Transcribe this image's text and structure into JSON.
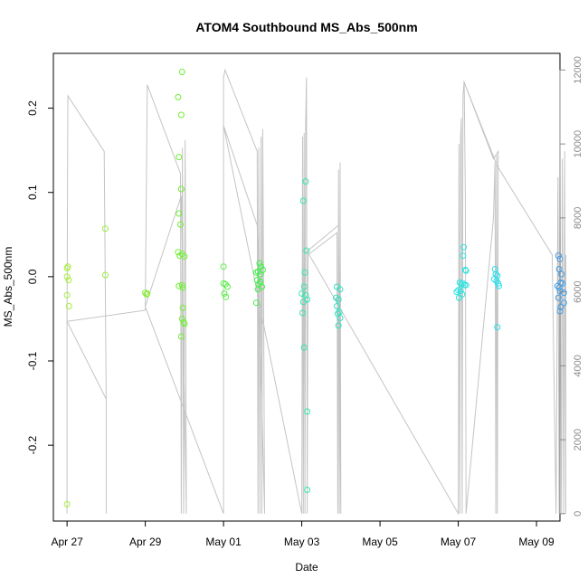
{
  "chart_data": {
    "type": "scatter",
    "title": "ATOM4 Southbound MS_Abs_500nm",
    "xlabel": "Date",
    "ylabel": "MS_Abs_500nm",
    "x_unit": "days since Apr 27",
    "xlim": [
      -0.35,
      12.6
    ],
    "ylim": [
      -0.29,
      0.265
    ],
    "right_ylim": [
      -200,
      12450
    ],
    "x_ticks": [
      {
        "value": 0,
        "label": "Apr 27"
      },
      {
        "value": 2,
        "label": "Apr 29"
      },
      {
        "value": 4,
        "label": "May 01"
      },
      {
        "value": 6,
        "label": "May 03"
      },
      {
        "value": 8,
        "label": "May 05"
      },
      {
        "value": 10,
        "label": "May 07"
      },
      {
        "value": 12,
        "label": "May 09"
      }
    ],
    "y_ticks": [
      {
        "value": 0.2,
        "label": "0.2"
      },
      {
        "value": 0.1,
        "label": "0.1"
      },
      {
        "value": 0.0,
        "label": "0.0"
      },
      {
        "value": -0.1,
        "label": "-0.1"
      },
      {
        "value": -0.2,
        "label": "-0.2"
      }
    ],
    "right_y_ticks": [
      {
        "value": 0,
        "label": "0"
      },
      {
        "value": 2000,
        "label": "2000"
      },
      {
        "value": 4000,
        "label": "4000"
      },
      {
        "value": 6000,
        "label": "6000"
      },
      {
        "value": 8000,
        "label": "8000"
      },
      {
        "value": 10000,
        "label": "10000"
      },
      {
        "value": 12000,
        "label": "12000"
      }
    ],
    "colors": {
      "line": "#c4c4c4",
      "axis": "#000000",
      "right_axis": "#8a8a8a"
    },
    "points": [
      {
        "x": 0.0,
        "y": 0.01,
        "color": "#a6ee3a"
      },
      {
        "x": 0.02,
        "y": 0.012,
        "color": "#a6ee3a"
      },
      {
        "x": 0.0,
        "y": 0.0,
        "color": "#a6ee3a"
      },
      {
        "x": 0.04,
        "y": -0.004,
        "color": "#a6ee3a"
      },
      {
        "x": 0.0,
        "y": -0.022,
        "color": "#a6ee3a"
      },
      {
        "x": 0.05,
        "y": -0.035,
        "color": "#a6ee3a"
      },
      {
        "x": 0.0,
        "y": -0.27,
        "color": "#a6ee3a"
      },
      {
        "x": 0.98,
        "y": 0.057,
        "color": "#98ee3a"
      },
      {
        "x": 0.98,
        "y": 0.002,
        "color": "#98ee3a"
      },
      {
        "x": 2.0,
        "y": -0.019,
        "color": "#88ee3a"
      },
      {
        "x": 2.03,
        "y": -0.021,
        "color": "#88ee3a"
      },
      {
        "x": 2.05,
        "y": -0.02,
        "color": "#88ee3a"
      },
      {
        "x": 2.86,
        "y": 0.075,
        "color": "#6ef030"
      },
      {
        "x": 2.9,
        "y": 0.062,
        "color": "#6ef030"
      },
      {
        "x": 2.84,
        "y": 0.029,
        "color": "#6ef030"
      },
      {
        "x": 2.88,
        "y": 0.025,
        "color": "#6ef030"
      },
      {
        "x": 2.94,
        "y": 0.027,
        "color": "#6ef030"
      },
      {
        "x": 3.0,
        "y": 0.024,
        "color": "#6ef030"
      },
      {
        "x": 2.86,
        "y": -0.011,
        "color": "#6ef030"
      },
      {
        "x": 2.94,
        "y": -0.01,
        "color": "#6ef030"
      },
      {
        "x": 2.96,
        "y": -0.013,
        "color": "#6ef030"
      },
      {
        "x": 2.96,
        "y": -0.037,
        "color": "#6ef030"
      },
      {
        "x": 2.94,
        "y": -0.05,
        "color": "#6ef030"
      },
      {
        "x": 2.98,
        "y": -0.054,
        "color": "#6ef030"
      },
      {
        "x": 3.0,
        "y": -0.056,
        "color": "#6ef030"
      },
      {
        "x": 2.92,
        "y": -0.071,
        "color": "#6ef030"
      },
      {
        "x": 2.84,
        "y": 0.213,
        "color": "#6ef030"
      },
      {
        "x": 2.94,
        "y": 0.243,
        "color": "#6ef030"
      },
      {
        "x": 2.92,
        "y": 0.192,
        "color": "#6ef030"
      },
      {
        "x": 2.86,
        "y": 0.142,
        "color": "#6ef030"
      },
      {
        "x": 2.92,
        "y": 0.104,
        "color": "#6ef030"
      },
      {
        "x": 4.0,
        "y": 0.012,
        "color": "#55ee40"
      },
      {
        "x": 4.0,
        "y": -0.008,
        "color": "#55ee40"
      },
      {
        "x": 4.05,
        "y": -0.009,
        "color": "#55ee40"
      },
      {
        "x": 4.1,
        "y": -0.012,
        "color": "#55ee40"
      },
      {
        "x": 4.02,
        "y": -0.02,
        "color": "#55ee40"
      },
      {
        "x": 4.06,
        "y": -0.024,
        "color": "#55ee40"
      },
      {
        "x": 4.84,
        "y": 0.005,
        "color": "#3ff048"
      },
      {
        "x": 4.88,
        "y": 0.006,
        "color": "#3ff048"
      },
      {
        "x": 4.92,
        "y": 0.016,
        "color": "#3ff048"
      },
      {
        "x": 4.96,
        "y": 0.012,
        "color": "#3ff048"
      },
      {
        "x": 5.0,
        "y": 0.008,
        "color": "#3ff048"
      },
      {
        "x": 4.94,
        "y": 0.003,
        "color": "#3ff048"
      },
      {
        "x": 4.86,
        "y": -0.004,
        "color": "#3ff048"
      },
      {
        "x": 4.9,
        "y": -0.009,
        "color": "#3ff048"
      },
      {
        "x": 4.94,
        "y": -0.006,
        "color": "#3ff048"
      },
      {
        "x": 4.98,
        "y": -0.012,
        "color": "#3ff048"
      },
      {
        "x": 4.88,
        "y": -0.015,
        "color": "#3ff048"
      },
      {
        "x": 4.84,
        "y": -0.031,
        "color": "#3ff048"
      },
      {
        "x": 6.1,
        "y": 0.113,
        "color": "#30e8b0"
      },
      {
        "x": 6.04,
        "y": 0.09,
        "color": "#30e8b0"
      },
      {
        "x": 6.12,
        "y": 0.031,
        "color": "#30e8b0"
      },
      {
        "x": 6.08,
        "y": 0.005,
        "color": "#30e8b0"
      },
      {
        "x": 6.06,
        "y": -0.012,
        "color": "#30e8b0"
      },
      {
        "x": 6.0,
        "y": -0.02,
        "color": "#30e8b0"
      },
      {
        "x": 6.1,
        "y": -0.022,
        "color": "#30e8b0"
      },
      {
        "x": 6.14,
        "y": -0.027,
        "color": "#30e8b0"
      },
      {
        "x": 6.04,
        "y": -0.03,
        "color": "#30e8b0"
      },
      {
        "x": 6.02,
        "y": -0.043,
        "color": "#30e8b0"
      },
      {
        "x": 6.06,
        "y": -0.084,
        "color": "#30e8b0"
      },
      {
        "x": 6.14,
        "y": -0.16,
        "color": "#30e8b0"
      },
      {
        "x": 6.14,
        "y": -0.253,
        "color": "#30e8b0"
      },
      {
        "x": 6.9,
        "y": -0.012,
        "color": "#30e0c0"
      },
      {
        "x": 6.98,
        "y": -0.015,
        "color": "#30e0c0"
      },
      {
        "x": 6.88,
        "y": -0.025,
        "color": "#30e0c0"
      },
      {
        "x": 6.94,
        "y": -0.027,
        "color": "#30e0c0"
      },
      {
        "x": 6.9,
        "y": -0.035,
        "color": "#30e0c0"
      },
      {
        "x": 6.96,
        "y": -0.042,
        "color": "#30e0c0"
      },
      {
        "x": 6.92,
        "y": -0.044,
        "color": "#30e0c0"
      },
      {
        "x": 6.98,
        "y": -0.049,
        "color": "#30e0c0"
      },
      {
        "x": 6.94,
        "y": -0.058,
        "color": "#30e0c0"
      },
      {
        "x": 10.14,
        "y": 0.035,
        "color": "#28e4e0"
      },
      {
        "x": 10.12,
        "y": 0.025,
        "color": "#28e4e0"
      },
      {
        "x": 10.18,
        "y": 0.008,
        "color": "#28e4e0"
      },
      {
        "x": 10.2,
        "y": 0.007,
        "color": "#28e4e0"
      },
      {
        "x": 10.04,
        "y": -0.007,
        "color": "#28e4e0"
      },
      {
        "x": 10.08,
        "y": -0.009,
        "color": "#28e4e0"
      },
      {
        "x": 10.12,
        "y": -0.008,
        "color": "#28e4e0"
      },
      {
        "x": 10.16,
        "y": -0.01,
        "color": "#28e4e0"
      },
      {
        "x": 10.2,
        "y": -0.01,
        "color": "#28e4e0"
      },
      {
        "x": 10.0,
        "y": -0.016,
        "color": "#28e4e0"
      },
      {
        "x": 10.06,
        "y": -0.017,
        "color": "#28e4e0"
      },
      {
        "x": 10.1,
        "y": -0.021,
        "color": "#28e4e0"
      },
      {
        "x": 10.02,
        "y": -0.025,
        "color": "#28e4e0"
      },
      {
        "x": 9.96,
        "y": -0.018,
        "color": "#28e4e0"
      },
      {
        "x": 10.94,
        "y": 0.009,
        "color": "#22e0f0"
      },
      {
        "x": 10.96,
        "y": 0.003,
        "color": "#22e0f0"
      },
      {
        "x": 11.0,
        "y": 0.001,
        "color": "#22e0f0"
      },
      {
        "x": 10.92,
        "y": -0.003,
        "color": "#22e0f0"
      },
      {
        "x": 10.98,
        "y": -0.005,
        "color": "#22e0f0"
      },
      {
        "x": 11.02,
        "y": -0.008,
        "color": "#22e0f0"
      },
      {
        "x": 11.04,
        "y": -0.011,
        "color": "#22e0f0"
      },
      {
        "x": 11.0,
        "y": -0.06,
        "color": "#22e0f0"
      },
      {
        "x": 12.56,
        "y": 0.025,
        "color": "#3a9ff0"
      },
      {
        "x": 12.6,
        "y": 0.021,
        "color": "#3a9ff0"
      },
      {
        "x": 12.58,
        "y": 0.009,
        "color": "#3a9ff0"
      },
      {
        "x": 12.64,
        "y": 0.003,
        "color": "#3a9ff0"
      },
      {
        "x": 12.62,
        "y": -0.007,
        "color": "#3a9ff0"
      },
      {
        "x": 12.66,
        "y": -0.008,
        "color": "#3a9ff0"
      },
      {
        "x": 12.54,
        "y": -0.011,
        "color": "#3a9ff0"
      },
      {
        "x": 12.58,
        "y": -0.013,
        "color": "#3a9ff0"
      },
      {
        "x": 12.6,
        "y": -0.017,
        "color": "#3a9ff0"
      },
      {
        "x": 12.7,
        "y": -0.019,
        "color": "#3a9ff0"
      },
      {
        "x": 12.56,
        "y": -0.025,
        "color": "#3a9ff0"
      },
      {
        "x": 12.7,
        "y": -0.031,
        "color": "#3a9ff0"
      },
      {
        "x": 12.62,
        "y": -0.036,
        "color": "#3a9ff0"
      },
      {
        "x": 12.6,
        "y": -0.041,
        "color": "#3a9ff0"
      }
    ],
    "secondary_line": {
      "name": "right-axis series (0–12000)",
      "points": [
        [
          0,
          0
        ],
        [
          0,
          5200
        ],
        [
          0.02,
          11300
        ],
        [
          0.95,
          9800
        ],
        [
          1.0,
          3100
        ],
        [
          1.0,
          0
        ],
        [
          1.0,
          3100
        ],
        [
          0.0,
          5200
        ],
        [
          2.0,
          5500
        ],
        [
          2.05,
          11600
        ],
        [
          2.9,
          9200
        ],
        [
          2.92,
          0
        ],
        [
          2.95,
          9900
        ],
        [
          2.98,
          0
        ],
        [
          3.02,
          10100
        ],
        [
          3.05,
          0
        ],
        [
          2.92,
          8600
        ],
        [
          2.0,
          5600
        ],
        [
          4.0,
          0
        ],
        [
          4.0,
          11800
        ],
        [
          4.04,
          12000
        ],
        [
          4.86,
          9800
        ],
        [
          4.88,
          0
        ],
        [
          4.9,
          9900
        ],
        [
          4.93,
          0
        ],
        [
          4.96,
          10200
        ],
        [
          4.98,
          0
        ],
        [
          5.0,
          10400
        ],
        [
          5.02,
          7000
        ],
        [
          5.05,
          0
        ],
        [
          4.86,
          7800
        ],
        [
          4.0,
          10500
        ],
        [
          6.0,
          0
        ],
        [
          6.02,
          10200
        ],
        [
          6.04,
          0
        ],
        [
          6.06,
          10300
        ],
        [
          6.08,
          0
        ],
        [
          6.1,
          10600
        ],
        [
          6.12,
          11800
        ],
        [
          6.14,
          0
        ],
        [
          6.16,
          7000
        ],
        [
          6.9,
          7600
        ],
        [
          6.92,
          0
        ],
        [
          6.94,
          9300
        ],
        [
          6.96,
          0
        ],
        [
          6.98,
          9500
        ],
        [
          7.0,
          0
        ],
        [
          6.94,
          7800
        ],
        [
          6.14,
          7100
        ],
        [
          10.0,
          0
        ],
        [
          10.02,
          10000
        ],
        [
          10.04,
          0
        ],
        [
          10.06,
          10200
        ],
        [
          10.08,
          10700
        ],
        [
          10.1,
          0
        ],
        [
          10.12,
          11300
        ],
        [
          10.15,
          11700
        ],
        [
          10.18,
          8600
        ],
        [
          10.2,
          0
        ],
        [
          10.9,
          8000
        ],
        [
          10.94,
          9500
        ],
        [
          10.96,
          0
        ],
        [
          10.98,
          9700
        ],
        [
          11.0,
          0
        ],
        [
          11.02,
          9800
        ],
        [
          10.9,
          9600
        ],
        [
          10.14,
          11700
        ],
        [
          11.0,
          9400
        ],
        [
          12.4,
          7000
        ],
        [
          12.5,
          0
        ],
        [
          12.55,
          9100
        ],
        [
          12.58,
          0
        ],
        [
          12.6,
          9400
        ],
        [
          12.64,
          0
        ],
        [
          12.66,
          9600
        ],
        [
          12.7,
          0
        ],
        [
          12.72,
          9800
        ],
        [
          12.75,
          0
        ],
        [
          12.75,
          7000
        ]
      ]
    }
  }
}
